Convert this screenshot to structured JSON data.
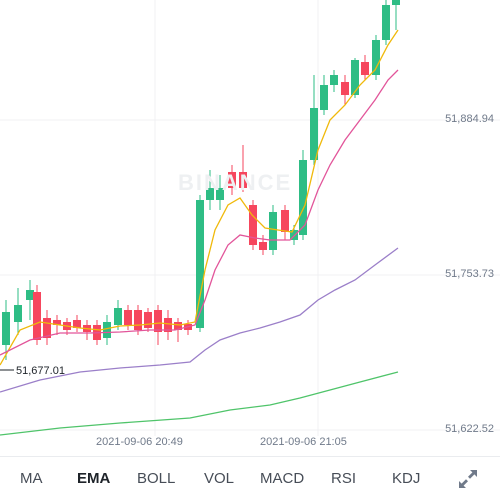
{
  "chart": {
    "price_labels": [
      "51,884.94",
      "51,753.73",
      "51,622.52"
    ],
    "time_labels": [
      "2021-09-06 20:49",
      "2021-09-06 21:05"
    ],
    "low_marker": "51,677.01",
    "watermark": "BINANCE",
    "colors": {
      "up": "#2ebd85",
      "down": "#f6465d",
      "ema7": "#f0b90b",
      "ema25": "#e2559a",
      "ema99": "#9b7fc9",
      "ema200": "#4fc46a",
      "grid": "#f0f1f3"
    }
  },
  "tabs": [
    {
      "label": "MA",
      "active": false
    },
    {
      "label": "EMA",
      "active": true
    },
    {
      "label": "BOLL",
      "active": false
    },
    {
      "label": "VOL",
      "active": false
    },
    {
      "label": "MACD",
      "active": false
    },
    {
      "label": "RSI",
      "active": false
    },
    {
      "label": "KDJ",
      "active": false
    }
  ],
  "expand_icon": "expand-arrows-icon"
}
